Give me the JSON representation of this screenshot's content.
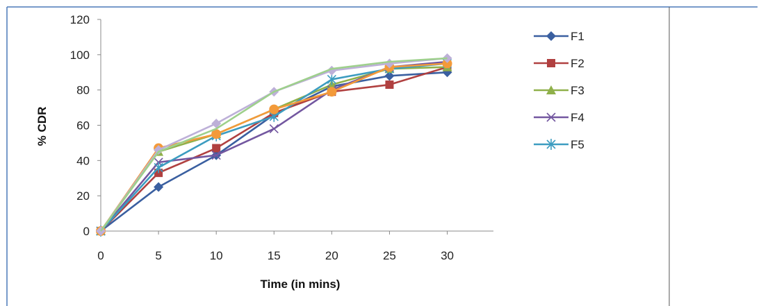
{
  "chart_data": {
    "type": "line",
    "title": "",
    "xlabel": "Time (in mins)",
    "ylabel": "% CDR",
    "x": [
      0,
      5,
      10,
      15,
      20,
      25,
      30
    ],
    "xlim": [
      0,
      34
    ],
    "ylim": [
      0,
      120
    ],
    "xticks": [
      0,
      5,
      10,
      15,
      20,
      25,
      30
    ],
    "yticks": [
      0,
      20,
      40,
      60,
      80,
      100,
      120
    ],
    "grid": false,
    "legend_position": "right",
    "series": [
      {
        "name": "F1",
        "color": "#3a5fa0",
        "marker": "diamond",
        "values": [
          0,
          25,
          43,
          66,
          82,
          88,
          90
        ]
      },
      {
        "name": "F2",
        "color": "#b04040",
        "marker": "square",
        "values": [
          0,
          33,
          47,
          67,
          79,
          83,
          93
        ]
      },
      {
        "name": "F3",
        "color": "#8fb04a",
        "marker": "triangle",
        "values": [
          0,
          45,
          55,
          69,
          83,
          92,
          93
        ]
      },
      {
        "name": "F4",
        "color": "#7357a0",
        "marker": "x",
        "values": [
          0,
          39,
          43,
          58,
          80,
          93,
          96
        ]
      },
      {
        "name": "F5",
        "color": "#3c9cc0",
        "marker": "star",
        "values": [
          0,
          36,
          54,
          65,
          86,
          92,
          95
        ]
      },
      {
        "name": "",
        "color": "#f39a3a",
        "marker": "circle",
        "values": [
          0,
          47,
          55,
          69,
          79,
          93,
          95
        ]
      },
      {
        "name": "",
        "color": "#bdb0d8",
        "marker": "diamond",
        "values": [
          0,
          46,
          61,
          79,
          91,
          95,
          98
        ]
      },
      {
        "name": "",
        "color": "#9ed08c",
        "marker": "none",
        "values": [
          0,
          45,
          58,
          79,
          92,
          96,
          98
        ]
      }
    ]
  }
}
